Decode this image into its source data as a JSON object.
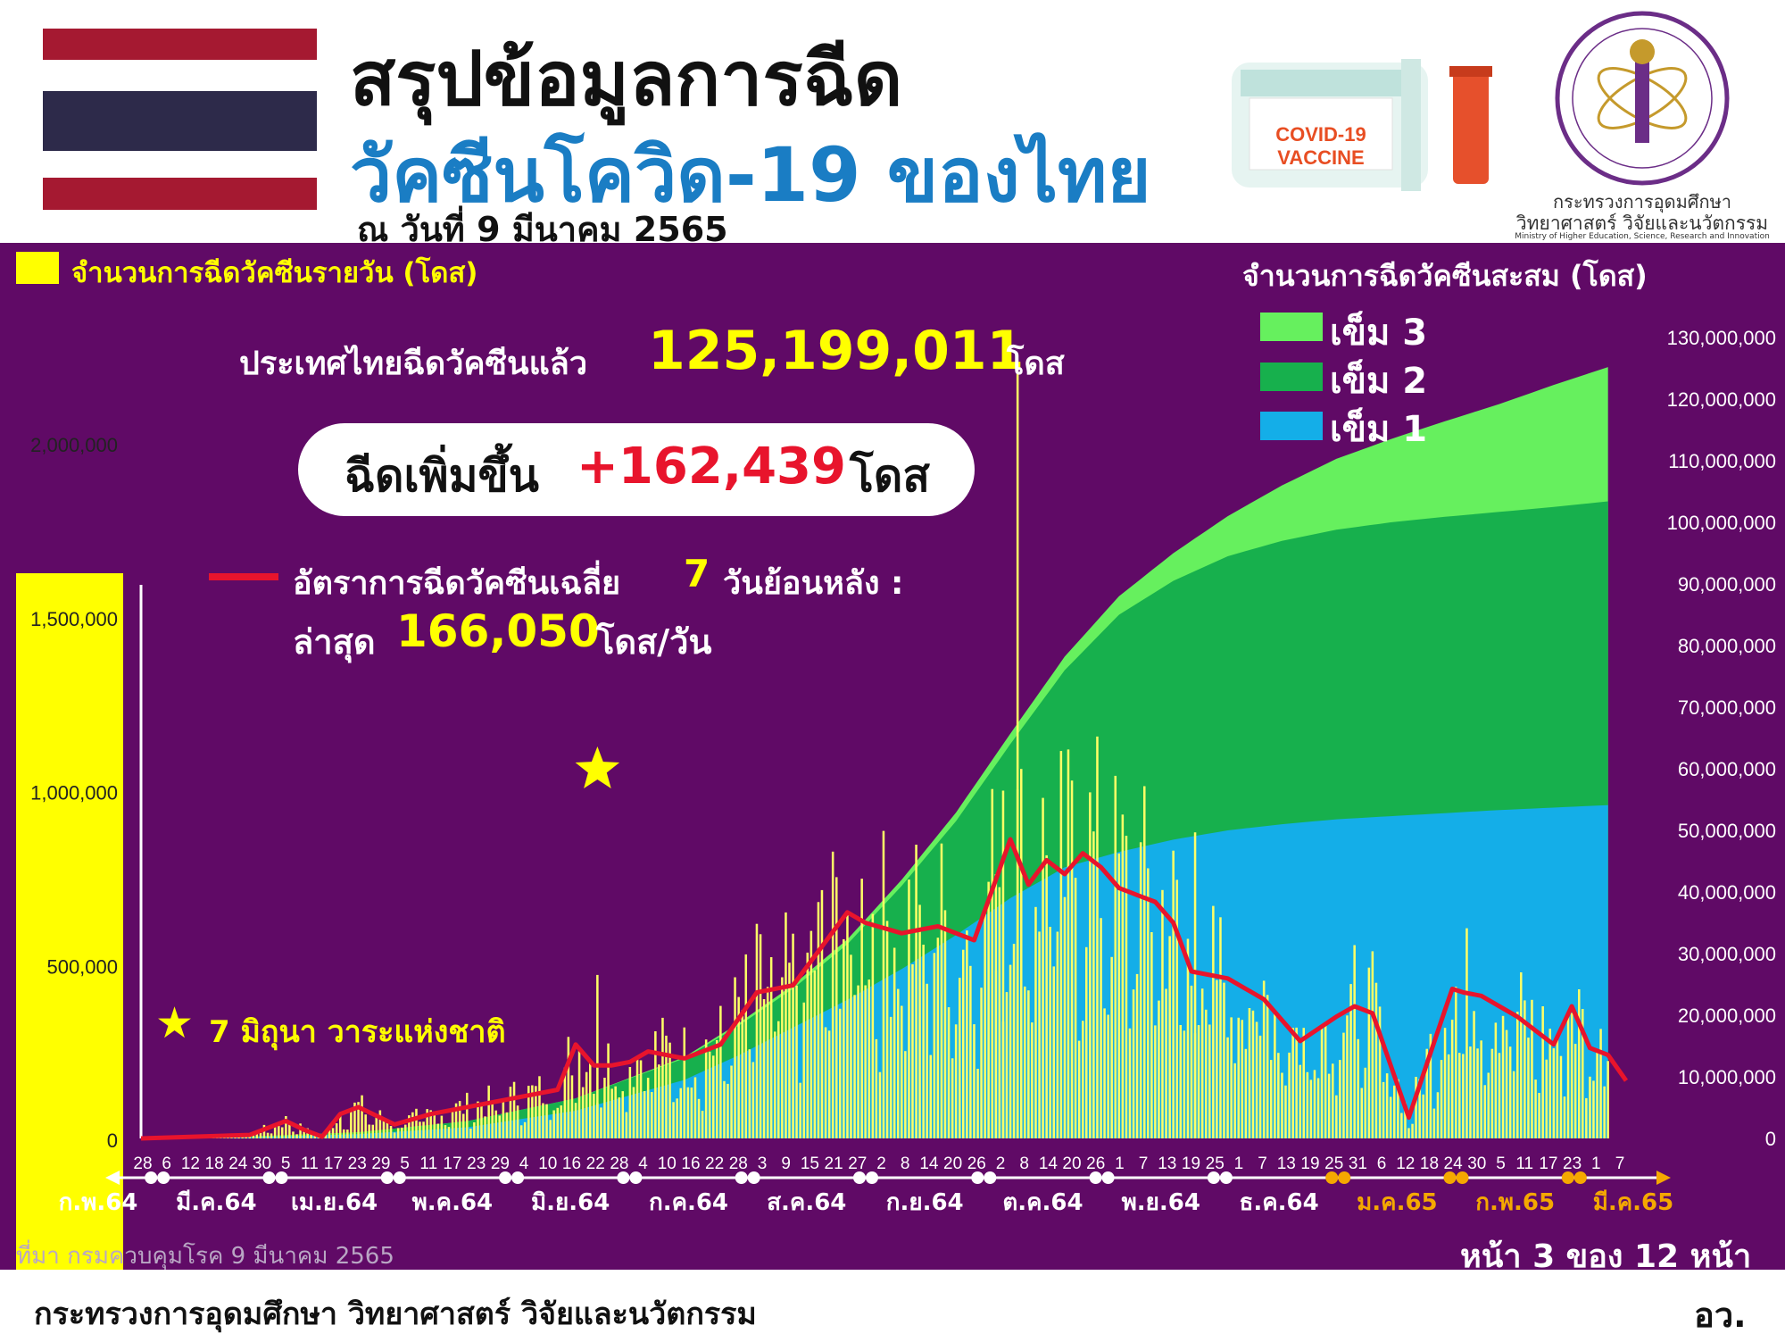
{
  "header": {
    "title_line1": "สรุปข้อมูลการฉีด",
    "title_line2": "วัคซีนโควิด-19 ของไทย",
    "date": "ณ วันที่ 9 มีนาคม 2565",
    "vaccine_label_1": "COVID-19",
    "vaccine_label_2": "VACCINE",
    "ministry_name_th_1": "กระทรวงการอุดมศึกษา",
    "ministry_name_th_2": "วิทยาศาสตร์ วิจัยและนวัตกรรม",
    "ministry_name_en": "Ministry of Higher Education, Science, Research and Innovation",
    "flag_icon": "thai-flag-icon",
    "colors": {
      "title_blue": "#1a7dc4",
      "panel": "#600a66"
    }
  },
  "chart_data": {
    "type": "bar",
    "left_legend": "จำนวนการฉีดวัคซีนรายวัน (โดส)",
    "right_legend_title": "จำนวนการฉีดวัคซีนสะสม (โดส)",
    "total_label": "ประเทศไทยฉีดวัคซีนแล้ว",
    "total_value": "125,199,011",
    "total_unit": "โดส",
    "increase_label": "ฉีดเพิ่มขึ้น",
    "increase_value": "+162,439",
    "increase_unit": "โดส",
    "avg_label": "อัตราการฉีดวัคซีนเฉลี่ย",
    "avg_days": "7",
    "avg_label_suffix": "วันย้อนหลัง :",
    "latest_label": "ล่าสุด",
    "latest_value": "166,050",
    "latest_unit": "โดส/วัน",
    "star_annotation": "7 มิถุนา วาระแห่งชาติ",
    "left_axis": {
      "ticks": [
        "0",
        "500,000",
        "1,000,000",
        "1,500,000",
        "2,000,000"
      ],
      "tick_values": [
        0,
        500000,
        1000000,
        1500000,
        2000000
      ],
      "ylim": [
        0,
        2300000
      ]
    },
    "right_axis": {
      "ticks": [
        "0",
        "10,000,000",
        "20,000,000",
        "30,000,000",
        "40,000,000",
        "50,000,000",
        "60,000,000",
        "70,000,000",
        "80,000,000",
        "90,000,000",
        "100,000,000",
        "110,000,000",
        "120,000,000",
        "130,000,000"
      ],
      "ylim": [
        0,
        130000000
      ]
    },
    "legend": [
      {
        "name": "เข็ม 3",
        "color": "#66f05e"
      },
      {
        "name": "เข็ม 2",
        "color": "#17b04d"
      },
      {
        "name": "เข็ม 1",
        "color": "#14aee8"
      }
    ],
    "x_day_labels": [
      "28",
      "6",
      "12",
      "18",
      "24",
      "30",
      "5",
      "11",
      "17",
      "23",
      "29",
      "5",
      "11",
      "17",
      "23",
      "29",
      "4",
      "10",
      "16",
      "22",
      "28",
      "4",
      "10",
      "16",
      "22",
      "28",
      "3",
      "9",
      "15",
      "21",
      "27",
      "2",
      "8",
      "14",
      "20",
      "26",
      "2",
      "8",
      "14",
      "20",
      "26",
      "1",
      "7",
      "13",
      "19",
      "25",
      "1",
      "7",
      "13",
      "19",
      "25",
      "31",
      "6",
      "12",
      "18",
      "24",
      "30",
      "5",
      "11",
      "17",
      "23",
      "1",
      "7"
    ],
    "x_month_labels": [
      {
        "label": "ก.พ.64",
        "color": "#ffffff"
      },
      {
        "label": "มี.ค.64",
        "color": "#ffffff"
      },
      {
        "label": "เม.ย.64",
        "color": "#ffffff"
      },
      {
        "label": "พ.ค.64",
        "color": "#ffffff"
      },
      {
        "label": "มิ.ย.64",
        "color": "#ffffff"
      },
      {
        "label": "ก.ค.64",
        "color": "#ffffff"
      },
      {
        "label": "ส.ค.64",
        "color": "#ffffff"
      },
      {
        "label": "ก.ย.64",
        "color": "#ffffff"
      },
      {
        "label": "ต.ค.64",
        "color": "#ffffff"
      },
      {
        "label": "พ.ย.64",
        "color": "#ffffff"
      },
      {
        "label": "ธ.ค.64",
        "color": "#ffffff"
      },
      {
        "label": "ม.ค.65",
        "color": "#f5a800"
      },
      {
        "label": "ก.พ.65",
        "color": "#f5a800"
      },
      {
        "label": "มี.ค.65",
        "color": "#f5a800"
      }
    ],
    "cumulative_series": {
      "x_days": [
        0,
        30,
        60,
        90,
        120,
        150,
        165,
        180,
        195,
        210,
        225,
        240,
        255,
        270,
        285,
        300,
        315,
        330,
        345,
        360,
        375,
        390,
        405
      ],
      "dose1_millions": [
        0,
        0.2,
        0.7,
        1.8,
        4.5,
        9.5,
        13.5,
        18,
        22.5,
        27.5,
        33,
        39,
        44,
        46.5,
        48.5,
        50,
        51,
        51.8,
        52.3,
        52.8,
        53.3,
        53.7,
        54.1
      ],
      "dose2_millions": [
        0,
        0.1,
        0.3,
        1.0,
        2.0,
        3.5,
        4.8,
        6.3,
        9,
        13.5,
        18.5,
        25,
        32,
        38.5,
        42,
        44.5,
        46,
        47,
        47.7,
        48.1,
        48.4,
        48.8,
        49.3
      ],
      "dose3_millions": [
        0,
        0,
        0,
        0,
        0,
        0.2,
        0.4,
        0.6,
        0.8,
        1.0,
        1.4,
        1.7,
        2.2,
        3,
        4.5,
        6.5,
        9,
        11.5,
        13.5,
        15.5,
        17.5,
        19.8,
        21.8
      ]
    },
    "avg7_series": {
      "x_days": [
        0,
        30,
        40,
        45,
        50,
        55,
        60,
        70,
        80,
        90,
        100,
        110,
        115,
        120,
        125,
        130,
        135,
        140,
        150,
        160,
        170,
        180,
        190,
        195,
        200,
        210,
        220,
        230,
        240,
        245,
        250,
        255,
        260,
        265,
        270,
        275,
        280,
        285,
        290,
        300,
        310,
        320,
        330,
        335,
        340,
        350,
        360,
        362,
        365,
        370,
        380,
        390,
        395,
        400,
        405,
        410
      ],
      "values": [
        0,
        10000,
        50000,
        25000,
        5000,
        70000,
        90000,
        40000,
        70000,
        90000,
        110000,
        130000,
        140000,
        270000,
        210000,
        210000,
        220000,
        250000,
        230000,
        270000,
        420000,
        440000,
        580000,
        650000,
        620000,
        590000,
        610000,
        570000,
        860000,
        730000,
        800000,
        760000,
        820000,
        780000,
        720000,
        700000,
        680000,
        620000,
        480000,
        460000,
        400000,
        280000,
        350000,
        380000,
        360000,
        60000,
        370000,
        430000,
        420000,
        410000,
        350000,
        270000,
        380000,
        260000,
        240000,
        166050
      ]
    },
    "star_day": 126
  },
  "footer": {
    "source": "ที่มา กรมควบคุมโรค 9 มีนาคม 2565",
    "page": "หน้า 3 ของ 12 หน้า",
    "org_full": "กระทรวงการอุดมศึกษา วิทยาศาสตร์ วิจัยและนวัตกรรม",
    "org_short": "อว."
  }
}
